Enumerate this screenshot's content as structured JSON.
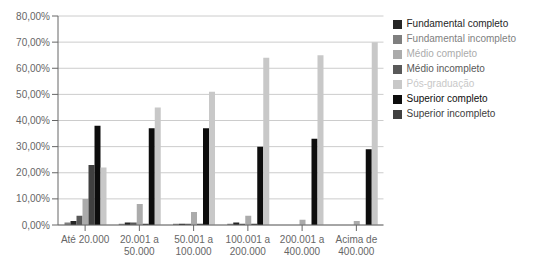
{
  "chart_data": {
    "type": "bar",
    "categories": [
      "Até 20.000",
      "20.001 a\n50.000",
      "50.001 a\n100.000",
      "100.001 a\n200.000",
      "200.001 a\n400.000",
      "Acima de\n400.000"
    ],
    "series": [
      {
        "name": "Fundamental incompleto",
        "color": "#7f7f7f",
        "values": [
          1.0,
          0.5,
          0.5,
          0.5,
          0.0,
          0.0
        ]
      },
      {
        "name": "Fundamental completo",
        "color": "#262626",
        "values": [
          1.5,
          1.0,
          0.5,
          1.0,
          0.0,
          0.0
        ]
      },
      {
        "name": "Médio incompleto",
        "color": "#595959",
        "values": [
          3.5,
          1.0,
          0.5,
          0.5,
          0.0,
          0.0
        ]
      },
      {
        "name": "Médio completo",
        "color": "#ababab",
        "values": [
          10.0,
          8.0,
          5.0,
          3.5,
          2.0,
          1.5
        ]
      },
      {
        "name": "Superior incompleto",
        "color": "#404040",
        "values": [
          23.0,
          0.5,
          0.5,
          0.5,
          0.0,
          0.0
        ]
      },
      {
        "name": "Superior completo",
        "color": "#0d0d0d",
        "values": [
          38.0,
          37.0,
          37.0,
          30.0,
          33.0,
          29.0
        ]
      },
      {
        "name": "Pós-graduação",
        "color": "#c8c8c8",
        "values": [
          22.0,
          45.0,
          51.0,
          64.0,
          65.0,
          70.0
        ]
      }
    ],
    "ylim": [
      0,
      80
    ],
    "yticks": [
      {
        "value": 0,
        "label": "0,00%"
      },
      {
        "value": 10,
        "label": "10,00%"
      },
      {
        "value": 20,
        "label": "20,00%"
      },
      {
        "value": 30,
        "label": "30,00%"
      },
      {
        "value": 40,
        "label": "40,00%"
      },
      {
        "value": 50,
        "label": "50,00%"
      },
      {
        "value": 60,
        "label": "60,00%"
      },
      {
        "value": 70,
        "label": "70,00%"
      },
      {
        "value": 80,
        "label": "80,00%"
      }
    ],
    "grid": true,
    "legend": "right"
  }
}
